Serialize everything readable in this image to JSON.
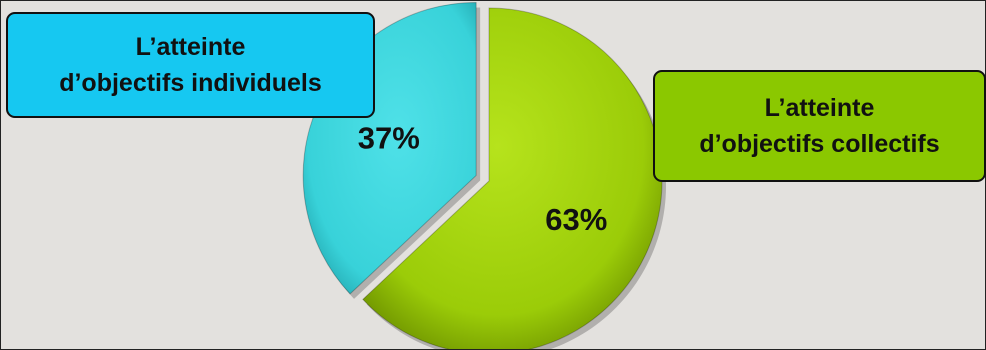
{
  "chart_data": {
    "type": "pie",
    "slices": [
      {
        "label": "L'atteinte\nd'objectifs individuels",
        "value": 37,
        "value_label": "37%",
        "color": "#3bd6de",
        "exploded": true
      },
      {
        "label": "L'atteinte\nd'objectifs collectifs",
        "value": 63,
        "value_label": "63%",
        "color": "#9ccf0a",
        "exploded": false
      }
    ],
    "title": "",
    "legend": "none"
  },
  "labels": {
    "individuels": "L’atteinte\nd’objectifs individuels",
    "collectifs": "L’atteinte\nd’objectifs collectifs"
  },
  "colors": {
    "background": "#e3e1de",
    "individuels_box": "#16c8f1",
    "collectifs_box": "#8bc800"
  }
}
